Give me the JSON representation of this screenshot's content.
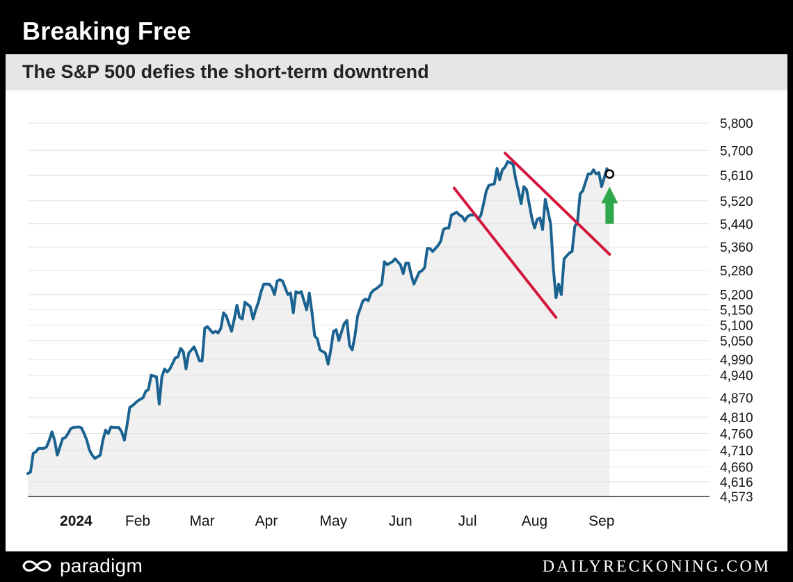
{
  "header": {
    "title": "Breaking Free",
    "subtitle": "The S&P 500 defies the short-term downtrend"
  },
  "footer": {
    "brand": "paradigm",
    "site": "DAILYRECKONING.COM"
  },
  "colors": {
    "line": "#1a628f",
    "channel": "#d4163c",
    "arrow": "#2ea84a",
    "fill": "#f0f0f0",
    "grid": "#e2e2e2"
  },
  "chart_data": {
    "type": "line",
    "title": "Breaking Free",
    "subtitle": "The S&P 500 defies the short-term downtrend",
    "y_scale": "log",
    "ylim": [
      4573,
      5800
    ],
    "y_ticks": [
      5800,
      5700,
      5610,
      5520,
      5440,
      5360,
      5280,
      5200,
      5150,
      5100,
      5050,
      4990,
      4940,
      4870,
      4810,
      4760,
      4710,
      4660,
      4616,
      4573
    ],
    "y_tick_labels": [
      "5,800",
      "5,700",
      "5,610",
      "5,520",
      "5,440",
      "5,360",
      "5,280",
      "5,200",
      "5,150",
      "5,100",
      "5,050",
      "4,990",
      "4,940",
      "4,870",
      "4,810",
      "4,760",
      "4,710",
      "4,660",
      "4,616",
      "4,573"
    ],
    "xlim": [
      "2024-01-02",
      "2024-09-05"
    ],
    "x_ticks": [
      {
        "label": "2024",
        "date": "2024-01-20",
        "bold": true
      },
      {
        "label": "Feb",
        "date": "2024-02-12"
      },
      {
        "label": "Mar",
        "date": "2024-03-07"
      },
      {
        "label": "Apr",
        "date": "2024-03-31"
      },
      {
        "label": "May",
        "date": "2024-04-25"
      },
      {
        "label": "Jun",
        "date": "2024-05-20"
      },
      {
        "label": "Jul",
        "date": "2024-06-14"
      },
      {
        "label": "Aug",
        "date": "2024-07-09"
      },
      {
        "label": "Sep",
        "date": "2024-08-03"
      }
    ],
    "grid": true,
    "series": [
      {
        "values": [
          [
            "2024-01-02",
            4640
          ],
          [
            "2024-01-03",
            4645
          ],
          [
            "2024-01-04",
            4700
          ],
          [
            "2024-01-05",
            4705
          ],
          [
            "2024-01-06",
            4715
          ],
          [
            "2024-01-08",
            4715
          ],
          [
            "2024-01-09",
            4720
          ],
          [
            "2024-01-10",
            4740
          ],
          [
            "2024-01-11",
            4765
          ],
          [
            "2024-01-12",
            4740
          ],
          [
            "2024-01-13",
            4695
          ],
          [
            "2024-01-15",
            4745
          ],
          [
            "2024-01-16",
            4748
          ],
          [
            "2024-01-17",
            4760
          ],
          [
            "2024-01-18",
            4775
          ],
          [
            "2024-01-19",
            4778
          ],
          [
            "2024-01-21",
            4780
          ],
          [
            "2024-01-22",
            4777
          ],
          [
            "2024-01-23",
            4760
          ],
          [
            "2024-01-24",
            4740
          ],
          [
            "2024-01-25",
            4710
          ],
          [
            "2024-01-26",
            4695
          ],
          [
            "2024-01-27",
            4685
          ],
          [
            "2024-01-29",
            4695
          ],
          [
            "2024-01-30",
            4740
          ],
          [
            "2024-01-31",
            4770
          ],
          [
            "2024-02-01",
            4760
          ],
          [
            "2024-02-02",
            4780
          ],
          [
            "2024-02-03",
            4778
          ],
          [
            "2024-02-05",
            4778
          ],
          [
            "2024-02-06",
            4765
          ],
          [
            "2024-02-07",
            4740
          ],
          [
            "2024-02-08",
            4785
          ],
          [
            "2024-02-09",
            4840
          ],
          [
            "2024-02-10",
            4845
          ],
          [
            "2024-02-12",
            4860
          ],
          [
            "2024-02-13",
            4865
          ],
          [
            "2024-02-14",
            4870
          ],
          [
            "2024-02-15",
            4890
          ],
          [
            "2024-02-16",
            4895
          ],
          [
            "2024-02-17",
            4940
          ],
          [
            "2024-02-19",
            4935
          ],
          [
            "2024-02-20",
            4850
          ],
          [
            "2024-02-21",
            4935
          ],
          [
            "2024-02-22",
            4960
          ],
          [
            "2024-02-23",
            4950
          ],
          [
            "2024-02-24",
            4960
          ],
          [
            "2024-02-26",
            4995
          ],
          [
            "2024-02-27",
            4998
          ],
          [
            "2024-02-28",
            5025
          ],
          [
            "2024-02-29",
            5015
          ],
          [
            "2024-03-01",
            4960
          ],
          [
            "2024-03-02",
            5010
          ],
          [
            "2024-03-04",
            5030
          ],
          [
            "2024-03-05",
            5010
          ],
          [
            "2024-03-06",
            4985
          ],
          [
            "2024-03-07",
            4985
          ],
          [
            "2024-03-08",
            5090
          ],
          [
            "2024-03-09",
            5095
          ],
          [
            "2024-03-11",
            5075
          ],
          [
            "2024-03-12",
            5080
          ],
          [
            "2024-03-13",
            5075
          ],
          [
            "2024-03-14",
            5090
          ],
          [
            "2024-03-15",
            5140
          ],
          [
            "2024-03-16",
            5130
          ],
          [
            "2024-03-18",
            5080
          ],
          [
            "2024-03-19",
            5120
          ],
          [
            "2024-03-20",
            5165
          ],
          [
            "2024-03-21",
            5125
          ],
          [
            "2024-03-22",
            5120
          ],
          [
            "2024-03-23",
            5175
          ],
          [
            "2024-03-25",
            5160
          ],
          [
            "2024-03-26",
            5120
          ],
          [
            "2024-03-27",
            5150
          ],
          [
            "2024-03-28",
            5175
          ],
          [
            "2024-03-29",
            5210
          ],
          [
            "2024-03-30",
            5235
          ],
          [
            "2024-04-01",
            5235
          ],
          [
            "2024-04-02",
            5225
          ],
          [
            "2024-04-03",
            5200
          ],
          [
            "2024-04-04",
            5245
          ],
          [
            "2024-04-05",
            5250
          ],
          [
            "2024-04-06",
            5245
          ],
          [
            "2024-04-08",
            5200
          ],
          [
            "2024-04-09",
            5205
          ],
          [
            "2024-04-10",
            5140
          ],
          [
            "2024-04-11",
            5210
          ],
          [
            "2024-04-12",
            5205
          ],
          [
            "2024-04-13",
            5210
          ],
          [
            "2024-04-15",
            5150
          ],
          [
            "2024-04-16",
            5205
          ],
          [
            "2024-04-17",
            5140
          ],
          [
            "2024-04-18",
            5065
          ],
          [
            "2024-04-19",
            5055
          ],
          [
            "2024-04-20",
            5020
          ],
          [
            "2024-04-22",
            5010
          ],
          [
            "2024-04-23",
            4975
          ],
          [
            "2024-04-24",
            5020
          ],
          [
            "2024-04-25",
            5080
          ],
          [
            "2024-04-26",
            5085
          ],
          [
            "2024-04-27",
            5050
          ],
          [
            "2024-04-29",
            5105
          ],
          [
            "2024-04-30",
            5115
          ],
          [
            "2024-05-01",
            5035
          ],
          [
            "2024-05-02",
            5020
          ],
          [
            "2024-05-03",
            5065
          ],
          [
            "2024-05-04",
            5130
          ],
          [
            "2024-05-06",
            5180
          ],
          [
            "2024-05-07",
            5185
          ],
          [
            "2024-05-08",
            5180
          ],
          [
            "2024-05-09",
            5205
          ],
          [
            "2024-05-10",
            5215
          ],
          [
            "2024-05-11",
            5220
          ],
          [
            "2024-05-13",
            5235
          ],
          [
            "2024-05-14",
            5310
          ],
          [
            "2024-05-15",
            5300
          ],
          [
            "2024-05-16",
            5305
          ],
          [
            "2024-05-17",
            5310
          ],
          [
            "2024-05-18",
            5320
          ],
          [
            "2024-05-20",
            5300
          ],
          [
            "2024-05-21",
            5270
          ],
          [
            "2024-05-22",
            5305
          ],
          [
            "2024-05-23",
            5305
          ],
          [
            "2024-05-24",
            5265
          ],
          [
            "2024-05-25",
            5235
          ],
          [
            "2024-05-27",
            5275
          ],
          [
            "2024-05-28",
            5280
          ],
          [
            "2024-05-29",
            5290
          ],
          [
            "2024-05-30",
            5355
          ],
          [
            "2024-05-31",
            5355
          ],
          [
            "2024-06-01",
            5345
          ],
          [
            "2024-06-03",
            5365
          ],
          [
            "2024-06-04",
            5380
          ],
          [
            "2024-06-05",
            5420
          ],
          [
            "2024-06-06",
            5425
          ],
          [
            "2024-06-07",
            5425
          ],
          [
            "2024-06-08",
            5470
          ],
          [
            "2024-06-10",
            5480
          ],
          [
            "2024-06-11",
            5470
          ],
          [
            "2024-06-12",
            5465
          ],
          [
            "2024-06-13",
            5450
          ],
          [
            "2024-06-14",
            5465
          ],
          [
            "2024-06-15",
            5470
          ],
          [
            "2024-06-17",
            5470
          ],
          [
            "2024-06-18",
            5455
          ],
          [
            "2024-06-19",
            5470
          ],
          [
            "2024-06-20",
            5510
          ],
          [
            "2024-06-21",
            5555
          ],
          [
            "2024-06-22",
            5575
          ],
          [
            "2024-06-24",
            5580
          ],
          [
            "2024-06-25",
            5635
          ],
          [
            "2024-06-26",
            5595
          ],
          [
            "2024-06-27",
            5630
          ],
          [
            "2024-06-28",
            5640
          ],
          [
            "2024-06-29",
            5660
          ],
          [
            "2024-07-01",
            5650
          ],
          [
            "2024-07-02",
            5595
          ],
          [
            "2024-07-03",
            5555
          ],
          [
            "2024-07-04",
            5510
          ],
          [
            "2024-07-05",
            5570
          ],
          [
            "2024-07-06",
            5560
          ],
          [
            "2024-07-08",
            5460
          ],
          [
            "2024-07-09",
            5425
          ],
          [
            "2024-07-10",
            5455
          ],
          [
            "2024-07-11",
            5460
          ],
          [
            "2024-07-12",
            5420
          ],
          [
            "2024-07-13",
            5525
          ],
          [
            "2024-07-15",
            5440
          ],
          [
            "2024-07-16",
            5290
          ],
          [
            "2024-07-17",
            5190
          ],
          [
            "2024-07-18",
            5235
          ],
          [
            "2024-07-19",
            5200
          ],
          [
            "2024-07-20",
            5320
          ],
          [
            "2024-07-22",
            5340
          ],
          [
            "2024-07-23",
            5345
          ],
          [
            "2024-07-24",
            5430
          ],
          [
            "2024-07-25",
            5445
          ],
          [
            "2024-07-26",
            5545
          ],
          [
            "2024-07-27",
            5555
          ],
          [
            "2024-07-29",
            5615
          ],
          [
            "2024-07-30",
            5615
          ],
          [
            "2024-07-31",
            5630
          ],
          [
            "2024-08-01",
            5615
          ],
          [
            "2024-08-02",
            5620
          ],
          [
            "2024-08-03",
            5570
          ],
          [
            "2024-08-05",
            5634
          ],
          [
            "2024-08-06",
            5615
          ]
        ]
      }
    ],
    "annotations": {
      "marker": {
        "date": "2024-08-06",
        "value": 5615
      },
      "upper_channel": [
        [
          "2024-06-28",
          5690
        ],
        [
          "2024-08-06",
          5335
        ]
      ],
      "lower_channel": [
        [
          "2024-06-09",
          5565
        ],
        [
          "2024-07-17",
          5125
        ]
      ],
      "arrow": {
        "date": "2024-08-06",
        "from": 5440,
        "to": 5570,
        "direction": "up"
      }
    }
  }
}
